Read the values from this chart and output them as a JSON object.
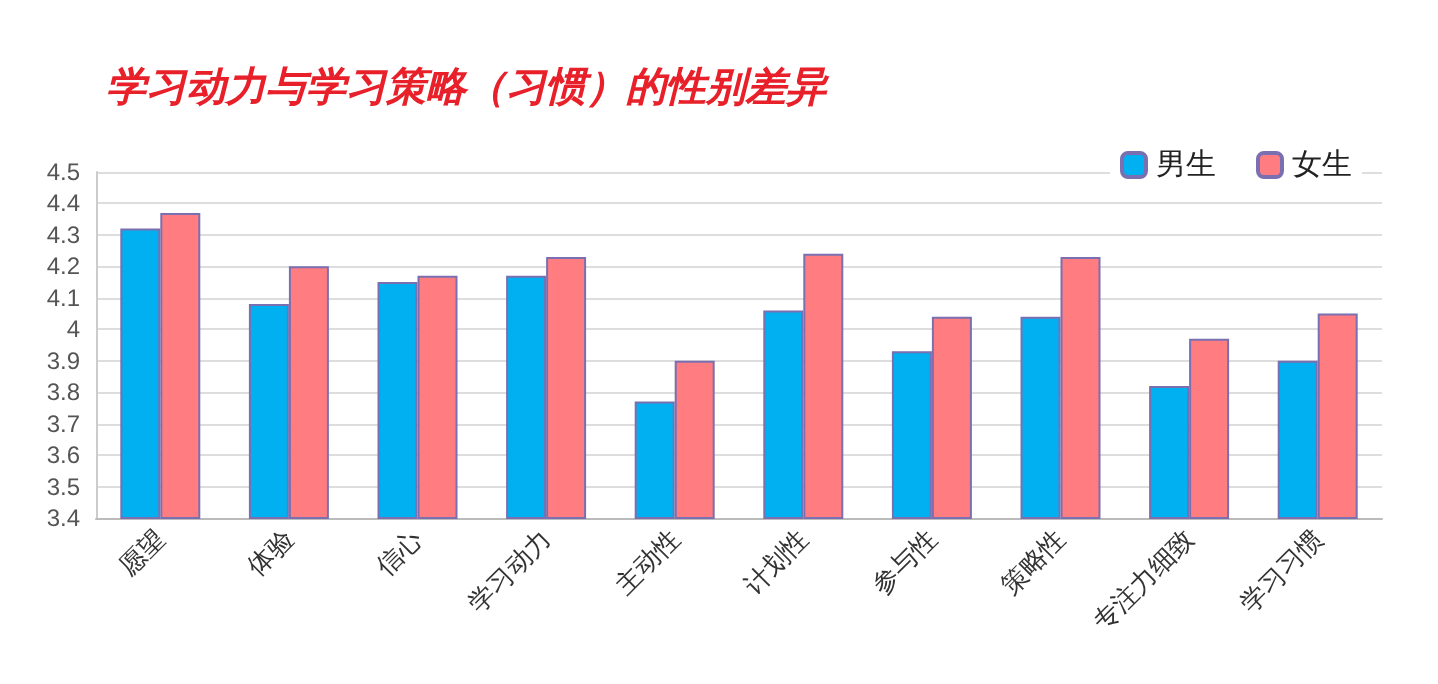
{
  "chart_data": {
    "type": "bar",
    "title": "学习动力与学习策略（习惯）的性别差异",
    "categories": [
      "愿望",
      "体验",
      "信心",
      "学习动力",
      "主动性",
      "计划性",
      "参与性",
      "策略性",
      "专注力细致",
      "学习习惯"
    ],
    "series": [
      {
        "name": "男生",
        "color": "#00b0f0",
        "values": [
          4.32,
          4.08,
          4.15,
          4.17,
          3.77,
          4.06,
          3.93,
          4.04,
          3.82,
          3.9
        ]
      },
      {
        "name": "女生",
        "color": "#ff7c80",
        "values": [
          4.37,
          4.2,
          4.17,
          4.23,
          3.9,
          4.24,
          4.04,
          4.23,
          3.97,
          4.05
        ]
      }
    ],
    "ylim": [
      3.4,
      4.5
    ],
    "yticks": [
      3.4,
      3.5,
      3.6,
      3.7,
      3.8,
      3.9,
      4,
      4.1,
      4.2,
      4.3,
      4.4,
      4.5
    ],
    "grid": "y",
    "legend": "top right"
  }
}
